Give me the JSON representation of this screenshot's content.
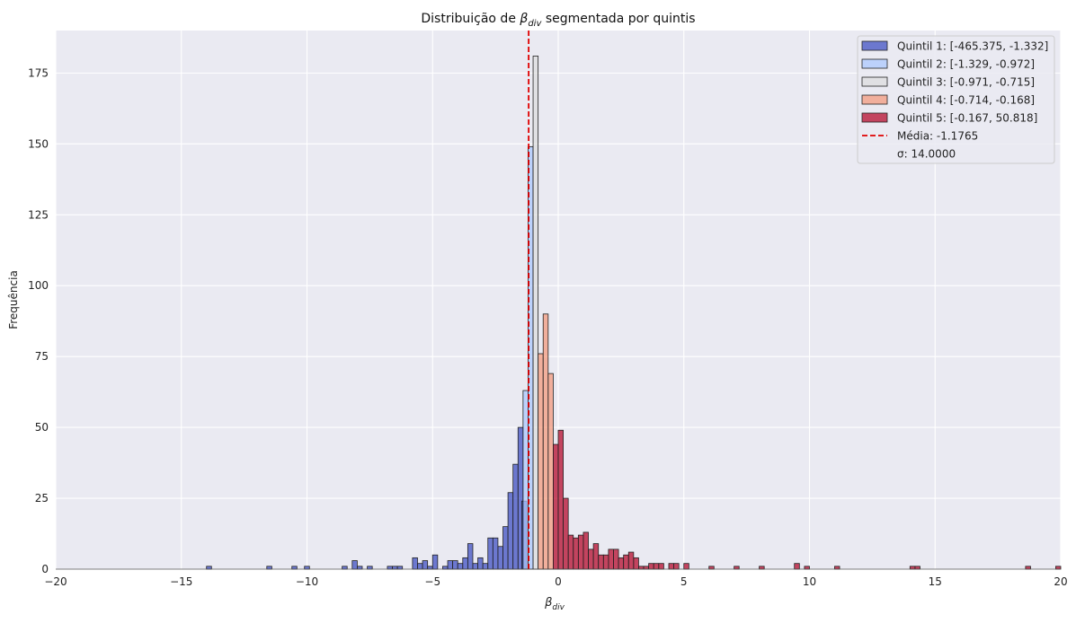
{
  "chart_data": {
    "type": "bar",
    "title": {
      "prefix": "Distribuição de ",
      "symbol": "β",
      "subscript": "div",
      "suffix": " segmentada por quintis"
    },
    "xlabel": {
      "symbol": "β",
      "subscript": "div"
    },
    "ylabel": "Frequência",
    "xlim": [
      -20,
      20
    ],
    "ylim": [
      0,
      190
    ],
    "x_ticks": [
      -20,
      -15,
      -10,
      -5,
      0,
      5,
      10,
      15,
      20
    ],
    "x_tick_labels": [
      "−20",
      "−15",
      "−10",
      "−5",
      "0",
      "5",
      "10",
      "15",
      "20"
    ],
    "y_ticks": [
      0,
      25,
      50,
      75,
      100,
      125,
      150,
      175
    ],
    "y_tick_labels": [
      "0",
      "25",
      "50",
      "75",
      "100",
      "125",
      "150",
      "175"
    ],
    "grid": true,
    "legend_position": "top-right",
    "bin_width": 0.2,
    "series": [
      {
        "name": "Quintil 1: [-465.375, -1.332]",
        "color": "#3b4cc0",
        "bins": [
          [
            -13.9,
            1
          ],
          [
            -11.5,
            1
          ],
          [
            -10.5,
            1
          ],
          [
            -10.0,
            1
          ],
          [
            -8.5,
            1
          ],
          [
            -8.1,
            3
          ],
          [
            -7.9,
            1
          ],
          [
            -7.5,
            1
          ],
          [
            -6.7,
            1
          ],
          [
            -6.5,
            1
          ],
          [
            -6.3,
            1
          ],
          [
            -5.7,
            4
          ],
          [
            -5.5,
            2
          ],
          [
            -5.3,
            3
          ],
          [
            -5.1,
            1
          ],
          [
            -4.9,
            5
          ],
          [
            -4.5,
            1
          ],
          [
            -4.3,
            3
          ],
          [
            -4.1,
            3
          ],
          [
            -3.9,
            2
          ],
          [
            -3.7,
            4
          ],
          [
            -3.5,
            9
          ],
          [
            -3.3,
            2
          ],
          [
            -3.1,
            4
          ],
          [
            -2.9,
            2
          ],
          [
            -2.7,
            11
          ],
          [
            -2.5,
            11
          ],
          [
            -2.3,
            8
          ],
          [
            -2.1,
            15
          ],
          [
            -1.9,
            27
          ],
          [
            -1.7,
            37
          ],
          [
            -1.5,
            50
          ],
          [
            -1.35,
            24
          ]
        ]
      },
      {
        "name": "Quintil 2: [-1.329, -0.972]",
        "color": "#aac7fd",
        "bins": [
          [
            -1.3,
            63
          ],
          [
            -1.1,
            149
          ]
        ]
      },
      {
        "name": "Quintil 3: [-0.971, -0.715]",
        "color": "#dddcdc",
        "bins": [
          [
            -0.9,
            181
          ]
        ]
      },
      {
        "name": "Quintil 4: [-0.714, -0.168]",
        "color": "#f4987a",
        "bins": [
          [
            -0.7,
            76
          ],
          [
            -0.5,
            90
          ],
          [
            -0.3,
            69
          ]
        ]
      },
      {
        "name": "Quintil 5: [-0.167, 50.818]",
        "color": "#b40426",
        "bins": [
          [
            -0.1,
            44
          ],
          [
            0.1,
            49
          ],
          [
            0.3,
            25
          ],
          [
            0.5,
            12
          ],
          [
            0.7,
            11
          ],
          [
            0.9,
            12
          ],
          [
            1.1,
            13
          ],
          [
            1.3,
            7
          ],
          [
            1.5,
            9
          ],
          [
            1.7,
            5
          ],
          [
            1.9,
            5
          ],
          [
            2.1,
            7
          ],
          [
            2.3,
            7
          ],
          [
            2.5,
            4
          ],
          [
            2.7,
            5
          ],
          [
            2.9,
            6
          ],
          [
            3.1,
            4
          ],
          [
            3.3,
            1
          ],
          [
            3.5,
            1
          ],
          [
            3.7,
            2
          ],
          [
            3.9,
            2
          ],
          [
            4.1,
            2
          ],
          [
            4.5,
            2
          ],
          [
            4.7,
            2
          ],
          [
            5.1,
            2
          ],
          [
            6.1,
            1
          ],
          [
            7.1,
            1
          ],
          [
            8.1,
            1
          ],
          [
            9.5,
            2
          ],
          [
            9.9,
            1
          ],
          [
            11.1,
            1
          ],
          [
            14.1,
            1
          ],
          [
            14.3,
            1
          ],
          [
            18.7,
            1
          ],
          [
            19.9,
            1
          ]
        ]
      }
    ],
    "mean_line": {
      "x": -1.1765,
      "label": "Média: -1.1765",
      "color": "#e00000"
    },
    "sigma_label": "σ: 14.0000"
  }
}
